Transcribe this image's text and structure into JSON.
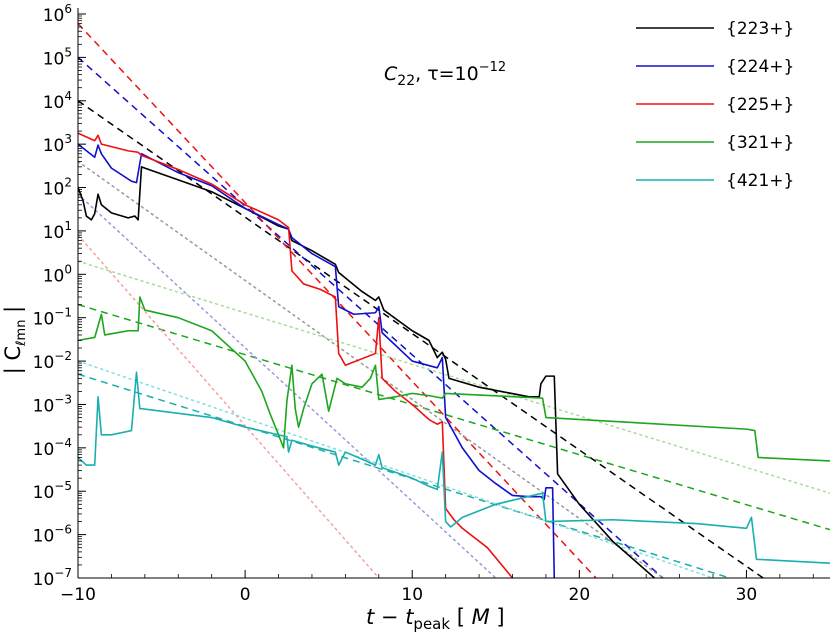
{
  "chart_data": {
    "type": "line",
    "annotation": {
      "base": "C",
      "sub": "22",
      "tau_text": ", τ=10",
      "tau_exp": "−12"
    },
    "xlabel": {
      "t": "t",
      "minus": " − ",
      "tpeak": "t",
      "peak_sub": "peak",
      "unit_open": " [ ",
      "unit": "M",
      "unit_close": " ]"
    },
    "ylabel": {
      "open": "| C",
      "sub": "ℓmn",
      "close": " |"
    },
    "xlim": [
      -10,
      35
    ],
    "ylim_log10": [
      -7,
      6
    ],
    "x_ticks": [
      {
        "value": -10,
        "label": "−10"
      },
      {
        "value": 0,
        "label": "0"
      },
      {
        "value": 10,
        "label": "10"
      },
      {
        "value": 20,
        "label": "20"
      },
      {
        "value": 30,
        "label": "30"
      }
    ],
    "y_ticks": [
      {
        "exp": 6,
        "base": "10",
        "sup": "6"
      },
      {
        "exp": 5,
        "base": "10",
        "sup": "5"
      },
      {
        "exp": 4,
        "base": "10",
        "sup": "4"
      },
      {
        "exp": 3,
        "base": "10",
        "sup": "3"
      },
      {
        "exp": 2,
        "base": "10",
        "sup": "2"
      },
      {
        "exp": 1,
        "base": "10",
        "sup": "1"
      },
      {
        "exp": 0,
        "base": "10",
        "sup": "0"
      },
      {
        "exp": -1,
        "base": "10",
        "sup": "−1"
      },
      {
        "exp": -2,
        "base": "10",
        "sup": "−2"
      },
      {
        "exp": -3,
        "base": "10",
        "sup": "−3"
      },
      {
        "exp": -4,
        "base": "10",
        "sup": "−4"
      },
      {
        "exp": -5,
        "base": "10",
        "sup": "−5"
      },
      {
        "exp": -6,
        "base": "10",
        "sup": "−6"
      },
      {
        "exp": -7,
        "base": "10",
        "sup": "−7"
      }
    ],
    "legend_position": "top-right",
    "series": [
      {
        "name": "{223+}",
        "color": "#000000",
        "style": "solid",
        "in_legend": true,
        "points": [
          [
            -10,
            100
          ],
          [
            -9.7,
            50
          ],
          [
            -9.5,
            22
          ],
          [
            -9.2,
            18
          ],
          [
            -9,
            25
          ],
          [
            -8.8,
            70
          ],
          [
            -8.6,
            40
          ],
          [
            -8,
            26
          ],
          [
            -7,
            20
          ],
          [
            -6.6,
            22
          ],
          [
            -6.4,
            18
          ],
          [
            -6.2,
            300
          ],
          [
            -6,
            280
          ],
          [
            -4,
            150
          ],
          [
            -2,
            80
          ],
          [
            0,
            33
          ],
          [
            2,
            13
          ],
          [
            2.6,
            11
          ],
          [
            2.8,
            6
          ],
          [
            4,
            3.5
          ],
          [
            5.4,
            1.7
          ],
          [
            5.6,
            1.1
          ],
          [
            7,
            0.4
          ],
          [
            7.8,
            0.25
          ],
          [
            8,
            0.3
          ],
          [
            8.3,
            0.15
          ],
          [
            10,
            0.05
          ],
          [
            11,
            0.03
          ],
          [
            11.5,
            0.012
          ],
          [
            11.8,
            0.016
          ],
          [
            12,
            0.011
          ],
          [
            12.2,
            0.004
          ],
          [
            14,
            0.0025
          ],
          [
            17,
            0.0015
          ],
          [
            17.6,
            0.0015
          ],
          [
            17.7,
            0.003
          ],
          [
            18,
            0.0045
          ],
          [
            18.5,
            0.0045
          ],
          [
            18.7,
            2.5e-05
          ],
          [
            20,
            5e-06
          ],
          [
            22,
            7e-07
          ],
          [
            24.5,
            1e-07
          ]
        ]
      },
      {
        "name": "{224+}",
        "color": "#1010cc",
        "style": "solid",
        "in_legend": true,
        "points": [
          [
            -10,
            1000
          ],
          [
            -9,
            500
          ],
          [
            -8.8,
            950
          ],
          [
            -8.6,
            600
          ],
          [
            -8,
            280
          ],
          [
            -6.8,
            140
          ],
          [
            -6.5,
            130
          ],
          [
            -6.2,
            600
          ],
          [
            -6,
            550
          ],
          [
            -4,
            220
          ],
          [
            -2,
            110
          ],
          [
            0,
            33
          ],
          [
            2,
            14
          ],
          [
            2.6,
            11
          ],
          [
            2.8,
            7
          ],
          [
            4,
            3
          ],
          [
            5.4,
            1.5
          ],
          [
            5.6,
            0.18
          ],
          [
            6.5,
            0.12
          ],
          [
            7.8,
            0.13
          ],
          [
            8,
            0.18
          ],
          [
            8.2,
            0.045
          ],
          [
            10,
            0.01
          ],
          [
            11.5,
            0.007
          ],
          [
            11.8,
            0.012
          ],
          [
            12,
            0.0005
          ],
          [
            13,
            0.0001
          ],
          [
            14,
            3e-05
          ],
          [
            15,
            1.5e-05
          ],
          [
            16,
            8e-06
          ],
          [
            17,
            7.5e-06
          ],
          [
            17.7,
            7.5e-06
          ],
          [
            17.9,
            6.5e-06
          ],
          [
            18,
            1.2e-05
          ],
          [
            18.4,
            1.2e-05
          ],
          [
            18.5,
            1e-07
          ]
        ]
      },
      {
        "name": "{225+}",
        "color": "#ee1111",
        "style": "solid",
        "in_legend": true,
        "points": [
          [
            -10,
            1800
          ],
          [
            -9,
            1200
          ],
          [
            -8.8,
            1600
          ],
          [
            -8.6,
            1000
          ],
          [
            -7,
            700
          ],
          [
            -6.4,
            650
          ],
          [
            -6.2,
            550
          ],
          [
            -4,
            260
          ],
          [
            -2,
            120
          ],
          [
            0,
            40
          ],
          [
            2,
            18
          ],
          [
            2.6,
            12
          ],
          [
            2.8,
            1.2
          ],
          [
            3.5,
            0.6
          ],
          [
            4.5,
            0.45
          ],
          [
            5.4,
            0.3
          ],
          [
            5.6,
            0.015
          ],
          [
            6,
            0.008
          ],
          [
            7.8,
            0.015
          ],
          [
            8,
            0.1
          ],
          [
            8.2,
            0.004
          ],
          [
            9,
            0.002
          ],
          [
            10,
            0.001
          ],
          [
            11,
            0.00045
          ],
          [
            11.5,
            0.00035
          ],
          [
            11.8,
            0.0004
          ],
          [
            12,
            4e-06
          ],
          [
            12.5,
            2.2e-06
          ],
          [
            13,
            1.4e-06
          ],
          [
            14.5,
            5e-07
          ],
          [
            16,
            1e-07
          ]
        ]
      },
      {
        "name": "{321+}",
        "color": "#1ea51e",
        "style": "solid",
        "in_legend": true,
        "points": [
          [
            -10,
            0.03
          ],
          [
            -9,
            0.035
          ],
          [
            -8.6,
            0.12
          ],
          [
            -8.4,
            0.04
          ],
          [
            -7,
            0.05
          ],
          [
            -6.4,
            0.05
          ],
          [
            -6.3,
            0.3
          ],
          [
            -6,
            0.15
          ],
          [
            -4,
            0.1
          ],
          [
            -2,
            0.05
          ],
          [
            0,
            0.01
          ],
          [
            1,
            0.002
          ],
          [
            1.5,
            0.0006
          ],
          [
            2,
            0.0002
          ],
          [
            2.3,
            0.0001
          ],
          [
            2.5,
            0.0012
          ],
          [
            2.8,
            0.008
          ],
          [
            3,
            0.0008
          ],
          [
            3.2,
            0.0003
          ],
          [
            3.5,
            0.0008
          ],
          [
            4,
            0.003
          ],
          [
            4.6,
            0.005
          ],
          [
            5,
            0.0007
          ],
          [
            5.5,
            0.004
          ],
          [
            6,
            0.003
          ],
          [
            7,
            0.0025
          ],
          [
            7.5,
            0.004
          ],
          [
            7.8,
            0.008
          ],
          [
            8,
            0.0013
          ],
          [
            9,
            0.0015
          ],
          [
            10,
            0.0018
          ],
          [
            11,
            0.0016
          ],
          [
            11.8,
            0.0014
          ],
          [
            12,
            0.0018
          ],
          [
            17.8,
            0.0014
          ],
          [
            18,
            0.0005
          ],
          [
            30,
            0.00027
          ],
          [
            30.5,
            0.00025
          ],
          [
            30.7,
            6e-05
          ],
          [
            35,
            5e-05
          ]
        ]
      },
      {
        "name": "{421+}",
        "color": "#1aafaf",
        "style": "solid",
        "in_legend": true,
        "points": [
          [
            -10,
            6e-05
          ],
          [
            -9.5,
            4e-05
          ],
          [
            -9,
            4e-05
          ],
          [
            -8.8,
            0.0015
          ],
          [
            -8.6,
            0.0002
          ],
          [
            -8,
            0.0002
          ],
          [
            -6.8,
            0.00025
          ],
          [
            -6.5,
            0.0055
          ],
          [
            -6.3,
            0.0008
          ],
          [
            -6.2,
            0.0008
          ],
          [
            -2,
            0.0005
          ],
          [
            0,
            0.0003
          ],
          [
            2.5,
            0.00018
          ],
          [
            2.6,
            8e-05
          ],
          [
            2.8,
            0.00015
          ],
          [
            4,
            0.00011
          ],
          [
            5.4,
            8e-05
          ],
          [
            5.6,
            4e-05
          ],
          [
            6,
            8e-05
          ],
          [
            7.8,
            4e-05
          ],
          [
            8,
            7e-05
          ],
          [
            8.2,
            3.5e-05
          ],
          [
            10,
            2e-05
          ],
          [
            11,
            1.3e-05
          ],
          [
            11.5,
            1.1e-05
          ],
          [
            11.8,
            8e-05
          ],
          [
            12,
            2e-06
          ],
          [
            12.3,
            1.5e-06
          ],
          [
            13,
            2.5e-06
          ],
          [
            15,
            5e-06
          ],
          [
            17.5,
            8.5e-06
          ],
          [
            17.8,
            9e-06
          ],
          [
            18,
            2e-06
          ],
          [
            22,
            2.2e-06
          ],
          [
            27,
            1.8e-06
          ],
          [
            30,
            1.4e-06
          ],
          [
            30.3,
            2.5e-06
          ],
          [
            30.6,
            2.7e-07
          ],
          [
            35,
            2.2e-07
          ]
        ]
      },
      {
        "name": "",
        "color": "#000000",
        "style": "dashed",
        "in_legend": false,
        "points": [
          [
            -10,
            10000
          ],
          [
            31,
            1e-07
          ]
        ]
      },
      {
        "name": "",
        "color": "#1010cc",
        "style": "dashed",
        "in_legend": false,
        "points": [
          [
            -10,
            100000
          ],
          [
            25,
            1e-07
          ]
        ]
      },
      {
        "name": "",
        "color": "#ee1111",
        "style": "dashed",
        "in_legend": false,
        "points": [
          [
            -10,
            600000
          ],
          [
            21,
            1e-07
          ]
        ]
      },
      {
        "name": "",
        "color": "#1ea51e",
        "style": "dashed",
        "in_legend": false,
        "points": [
          [
            -10,
            0.2
          ],
          [
            35,
            1.3e-06
          ]
        ]
      },
      {
        "name": "",
        "color": "#1aafaf",
        "style": "dashed",
        "in_legend": false,
        "points": [
          [
            -10,
            0.005
          ],
          [
            29,
            1e-07
          ]
        ]
      },
      {
        "name": "",
        "color": "#999999",
        "style": "dotted",
        "in_legend": false,
        "points": [
          [
            -10,
            400
          ],
          [
            25,
            1e-07
          ]
        ]
      },
      {
        "name": "",
        "color": "#9999dd",
        "style": "dotted",
        "in_legend": false,
        "points": [
          [
            -10,
            70
          ],
          [
            15,
            1e-07
          ]
        ]
      },
      {
        "name": "",
        "color": "#f5a0a0",
        "style": "dotted",
        "in_legend": false,
        "points": [
          [
            -10,
            8
          ],
          [
            8,
            1e-07
          ]
        ]
      },
      {
        "name": "",
        "color": "#a8dc98",
        "style": "dotted",
        "in_legend": false,
        "points": [
          [
            -10,
            2
          ],
          [
            35,
            9e-06
          ]
        ]
      },
      {
        "name": "",
        "color": "#88dddd",
        "style": "dotted",
        "in_legend": false,
        "points": [
          [
            -10,
            0.01
          ],
          [
            28,
            1e-07
          ]
        ]
      }
    ]
  }
}
